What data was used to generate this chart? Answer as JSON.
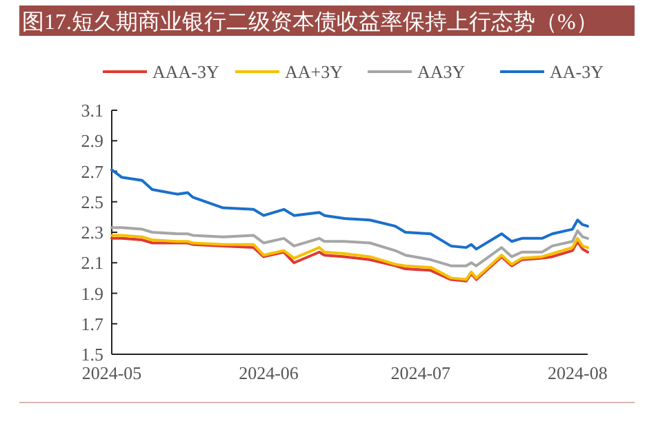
{
  "chart_data": {
    "type": "line",
    "title": "图17.短久期商业银行二级资本债收益率保持上行态势（%）",
    "x": [
      "2024-05-01",
      "2024-05-03",
      "2024-05-07",
      "2024-05-09",
      "2024-05-14",
      "2024-05-16",
      "2024-05-17",
      "2024-05-23",
      "2024-05-29",
      "2024-05-31",
      "2024-06-04",
      "2024-06-06",
      "2024-06-11",
      "2024-06-12",
      "2024-06-16",
      "2024-06-21",
      "2024-06-26",
      "2024-06-28",
      "2024-07-03",
      "2024-07-07",
      "2024-07-10",
      "2024-07-11",
      "2024-07-12",
      "2024-07-17",
      "2024-07-19",
      "2024-07-21",
      "2024-07-25",
      "2024-07-27",
      "2024-07-31",
      "2024-08-01",
      "2024-08-02",
      "2024-08-03"
    ],
    "series": [
      {
        "name": "AAA-3Y",
        "color": "#e03a32",
        "values": [
          2.26,
          2.26,
          2.25,
          2.23,
          2.23,
          2.23,
          2.22,
          2.21,
          2.2,
          2.14,
          2.17,
          2.1,
          2.17,
          2.15,
          2.14,
          2.12,
          2.08,
          2.06,
          2.05,
          1.99,
          1.98,
          2.03,
          1.99,
          2.14,
          2.08,
          2.12,
          2.13,
          2.14,
          2.18,
          2.24,
          2.19,
          2.17
        ]
      },
      {
        "name": "AA+3Y",
        "color": "#f5c000",
        "values": [
          2.28,
          2.28,
          2.27,
          2.25,
          2.24,
          2.24,
          2.23,
          2.22,
          2.22,
          2.15,
          2.18,
          2.13,
          2.2,
          2.17,
          2.16,
          2.14,
          2.09,
          2.08,
          2.07,
          2.0,
          1.99,
          2.04,
          2.0,
          2.15,
          2.09,
          2.13,
          2.14,
          2.16,
          2.2,
          2.26,
          2.21,
          2.2
        ]
      },
      {
        "name": "AA3Y",
        "color": "#a6a6a6",
        "values": [
          2.33,
          2.33,
          2.32,
          2.3,
          2.29,
          2.29,
          2.28,
          2.27,
          2.28,
          2.23,
          2.26,
          2.21,
          2.26,
          2.24,
          2.24,
          2.23,
          2.18,
          2.15,
          2.12,
          2.08,
          2.08,
          2.1,
          2.08,
          2.2,
          2.14,
          2.17,
          2.17,
          2.21,
          2.24,
          2.31,
          2.27,
          2.26
        ]
      },
      {
        "name": "AA-3Y",
        "color": "#1a6fcc",
        "values": [
          2.71,
          2.66,
          2.64,
          2.58,
          2.55,
          2.56,
          2.53,
          2.46,
          2.45,
          2.41,
          2.45,
          2.41,
          2.43,
          2.41,
          2.39,
          2.38,
          2.34,
          2.3,
          2.29,
          2.21,
          2.2,
          2.22,
          2.19,
          2.29,
          2.24,
          2.26,
          2.26,
          2.29,
          2.32,
          2.38,
          2.35,
          2.34
        ]
      }
    ],
    "xlim": [
      "2024-05-01",
      "2024-08-03"
    ],
    "xticks": [
      {
        "value": "2024-05-01",
        "label": "2024-05"
      },
      {
        "value": "2024-06-01",
        "label": "2024-06"
      },
      {
        "value": "2024-07-01",
        "label": "2024-07"
      },
      {
        "value": "2024-08-01",
        "label": "2024-08"
      }
    ],
    "ylim": [
      1.5,
      3.1
    ],
    "yticks": [
      1.5,
      1.7,
      1.9,
      2.1,
      2.3,
      2.5,
      2.7,
      2.9,
      3.1
    ],
    "legend": "top",
    "grid": false,
    "line_style": "solid"
  }
}
